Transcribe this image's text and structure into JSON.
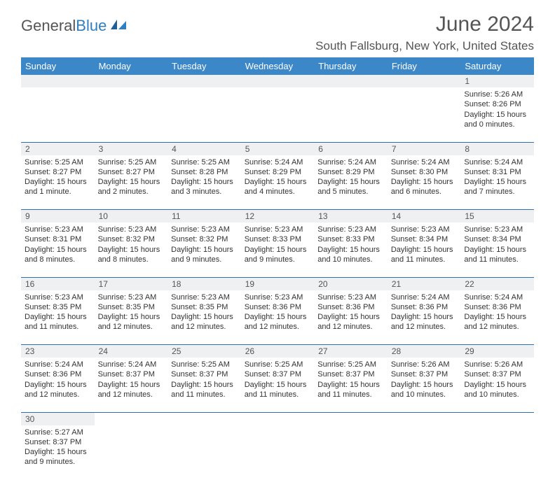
{
  "brand": {
    "part1": "General",
    "part2": "Blue"
  },
  "title": "June 2024",
  "location": "South Fallsburg, New York, United States",
  "colors": {
    "header_bg": "#3b87c8",
    "header_text": "#ffffff",
    "daynum_bg": "#eef0f1",
    "divider": "#2f6fa8",
    "text": "#333333",
    "title_text": "#555555"
  },
  "weekdays": [
    "Sunday",
    "Monday",
    "Tuesday",
    "Wednesday",
    "Thursday",
    "Friday",
    "Saturday"
  ],
  "weeks": [
    [
      null,
      null,
      null,
      null,
      null,
      null,
      {
        "day": "1",
        "sunrise": "Sunrise: 5:26 AM",
        "sunset": "Sunset: 8:26 PM",
        "daylight1": "Daylight: 15 hours",
        "daylight2": "and 0 minutes."
      }
    ],
    [
      {
        "day": "2",
        "sunrise": "Sunrise: 5:25 AM",
        "sunset": "Sunset: 8:27 PM",
        "daylight1": "Daylight: 15 hours",
        "daylight2": "and 1 minute."
      },
      {
        "day": "3",
        "sunrise": "Sunrise: 5:25 AM",
        "sunset": "Sunset: 8:27 PM",
        "daylight1": "Daylight: 15 hours",
        "daylight2": "and 2 minutes."
      },
      {
        "day": "4",
        "sunrise": "Sunrise: 5:25 AM",
        "sunset": "Sunset: 8:28 PM",
        "daylight1": "Daylight: 15 hours",
        "daylight2": "and 3 minutes."
      },
      {
        "day": "5",
        "sunrise": "Sunrise: 5:24 AM",
        "sunset": "Sunset: 8:29 PM",
        "daylight1": "Daylight: 15 hours",
        "daylight2": "and 4 minutes."
      },
      {
        "day": "6",
        "sunrise": "Sunrise: 5:24 AM",
        "sunset": "Sunset: 8:29 PM",
        "daylight1": "Daylight: 15 hours",
        "daylight2": "and 5 minutes."
      },
      {
        "day": "7",
        "sunrise": "Sunrise: 5:24 AM",
        "sunset": "Sunset: 8:30 PM",
        "daylight1": "Daylight: 15 hours",
        "daylight2": "and 6 minutes."
      },
      {
        "day": "8",
        "sunrise": "Sunrise: 5:24 AM",
        "sunset": "Sunset: 8:31 PM",
        "daylight1": "Daylight: 15 hours",
        "daylight2": "and 7 minutes."
      }
    ],
    [
      {
        "day": "9",
        "sunrise": "Sunrise: 5:23 AM",
        "sunset": "Sunset: 8:31 PM",
        "daylight1": "Daylight: 15 hours",
        "daylight2": "and 8 minutes."
      },
      {
        "day": "10",
        "sunrise": "Sunrise: 5:23 AM",
        "sunset": "Sunset: 8:32 PM",
        "daylight1": "Daylight: 15 hours",
        "daylight2": "and 8 minutes."
      },
      {
        "day": "11",
        "sunrise": "Sunrise: 5:23 AM",
        "sunset": "Sunset: 8:32 PM",
        "daylight1": "Daylight: 15 hours",
        "daylight2": "and 9 minutes."
      },
      {
        "day": "12",
        "sunrise": "Sunrise: 5:23 AM",
        "sunset": "Sunset: 8:33 PM",
        "daylight1": "Daylight: 15 hours",
        "daylight2": "and 9 minutes."
      },
      {
        "day": "13",
        "sunrise": "Sunrise: 5:23 AM",
        "sunset": "Sunset: 8:33 PM",
        "daylight1": "Daylight: 15 hours",
        "daylight2": "and 10 minutes."
      },
      {
        "day": "14",
        "sunrise": "Sunrise: 5:23 AM",
        "sunset": "Sunset: 8:34 PM",
        "daylight1": "Daylight: 15 hours",
        "daylight2": "and 11 minutes."
      },
      {
        "day": "15",
        "sunrise": "Sunrise: 5:23 AM",
        "sunset": "Sunset: 8:34 PM",
        "daylight1": "Daylight: 15 hours",
        "daylight2": "and 11 minutes."
      }
    ],
    [
      {
        "day": "16",
        "sunrise": "Sunrise: 5:23 AM",
        "sunset": "Sunset: 8:35 PM",
        "daylight1": "Daylight: 15 hours",
        "daylight2": "and 11 minutes."
      },
      {
        "day": "17",
        "sunrise": "Sunrise: 5:23 AM",
        "sunset": "Sunset: 8:35 PM",
        "daylight1": "Daylight: 15 hours",
        "daylight2": "and 12 minutes."
      },
      {
        "day": "18",
        "sunrise": "Sunrise: 5:23 AM",
        "sunset": "Sunset: 8:35 PM",
        "daylight1": "Daylight: 15 hours",
        "daylight2": "and 12 minutes."
      },
      {
        "day": "19",
        "sunrise": "Sunrise: 5:23 AM",
        "sunset": "Sunset: 8:36 PM",
        "daylight1": "Daylight: 15 hours",
        "daylight2": "and 12 minutes."
      },
      {
        "day": "20",
        "sunrise": "Sunrise: 5:23 AM",
        "sunset": "Sunset: 8:36 PM",
        "daylight1": "Daylight: 15 hours",
        "daylight2": "and 12 minutes."
      },
      {
        "day": "21",
        "sunrise": "Sunrise: 5:24 AM",
        "sunset": "Sunset: 8:36 PM",
        "daylight1": "Daylight: 15 hours",
        "daylight2": "and 12 minutes."
      },
      {
        "day": "22",
        "sunrise": "Sunrise: 5:24 AM",
        "sunset": "Sunset: 8:36 PM",
        "daylight1": "Daylight: 15 hours",
        "daylight2": "and 12 minutes."
      }
    ],
    [
      {
        "day": "23",
        "sunrise": "Sunrise: 5:24 AM",
        "sunset": "Sunset: 8:36 PM",
        "daylight1": "Daylight: 15 hours",
        "daylight2": "and 12 minutes."
      },
      {
        "day": "24",
        "sunrise": "Sunrise: 5:24 AM",
        "sunset": "Sunset: 8:37 PM",
        "daylight1": "Daylight: 15 hours",
        "daylight2": "and 12 minutes."
      },
      {
        "day": "25",
        "sunrise": "Sunrise: 5:25 AM",
        "sunset": "Sunset: 8:37 PM",
        "daylight1": "Daylight: 15 hours",
        "daylight2": "and 11 minutes."
      },
      {
        "day": "26",
        "sunrise": "Sunrise: 5:25 AM",
        "sunset": "Sunset: 8:37 PM",
        "daylight1": "Daylight: 15 hours",
        "daylight2": "and 11 minutes."
      },
      {
        "day": "27",
        "sunrise": "Sunrise: 5:25 AM",
        "sunset": "Sunset: 8:37 PM",
        "daylight1": "Daylight: 15 hours",
        "daylight2": "and 11 minutes."
      },
      {
        "day": "28",
        "sunrise": "Sunrise: 5:26 AM",
        "sunset": "Sunset: 8:37 PM",
        "daylight1": "Daylight: 15 hours",
        "daylight2": "and 10 minutes."
      },
      {
        "day": "29",
        "sunrise": "Sunrise: 5:26 AM",
        "sunset": "Sunset: 8:37 PM",
        "daylight1": "Daylight: 15 hours",
        "daylight2": "and 10 minutes."
      }
    ],
    [
      {
        "day": "30",
        "sunrise": "Sunrise: 5:27 AM",
        "sunset": "Sunset: 8:37 PM",
        "daylight1": "Daylight: 15 hours",
        "daylight2": "and 9 minutes."
      },
      null,
      null,
      null,
      null,
      null,
      null
    ]
  ]
}
